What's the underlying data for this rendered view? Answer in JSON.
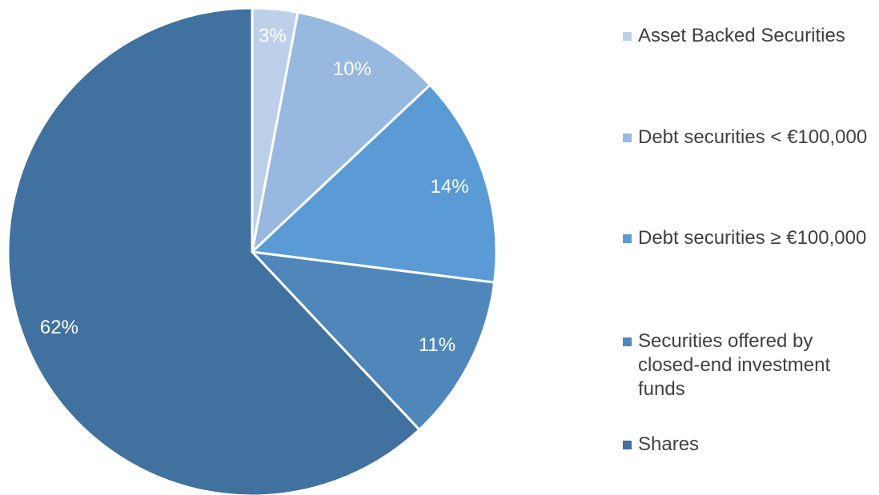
{
  "chart_data": {
    "type": "pie",
    "categories": [
      "Asset Backed Securities",
      "Debt securities < €100,000",
      "Debt securities ≥ €100,000",
      "Securities offered by closed-end investment funds",
      "Shares"
    ],
    "values": [
      3,
      10,
      14,
      11,
      62
    ],
    "value_labels": [
      "3%",
      "10%",
      "14%",
      "11%",
      "62%"
    ],
    "colors": [
      "#bdd0ea",
      "#97b9e0",
      "#5b9bd5",
      "#4f87bb",
      "#41729f"
    ],
    "legend": "right"
  }
}
